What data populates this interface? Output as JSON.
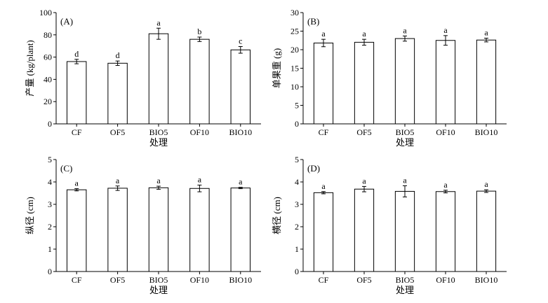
{
  "chart_data": [
    {
      "id": "A",
      "type": "bar",
      "panel_label": "(A)",
      "categories": [
        "CF",
        "OF5",
        "BIO5",
        "OF10",
        "BIO10"
      ],
      "values": [
        56,
        54.5,
        81,
        76,
        66.5
      ],
      "errors": [
        2,
        2,
        5,
        2,
        3
      ],
      "letters": [
        "d",
        "d",
        "a",
        "b",
        "c"
      ],
      "xlabel": "处理",
      "ylabel": "产量 (kg/plant)",
      "ylim": [
        0,
        100
      ],
      "yticks": [
        "0",
        "20",
        "40",
        "60",
        "80",
        "100"
      ]
    },
    {
      "id": "B",
      "type": "bar",
      "panel_label": "(B)",
      "categories": [
        "CF",
        "OF5",
        "BIO5",
        "OF10",
        "BIO10"
      ],
      "values": [
        21.8,
        22,
        23,
        22.5,
        22.6
      ],
      "errors": [
        1,
        0.8,
        0.7,
        1.3,
        0.5
      ],
      "letters": [
        "a",
        "a",
        "a",
        "a",
        "a"
      ],
      "xlabel": "处理",
      "ylabel": "单果重 (g)",
      "ylim": [
        0,
        30
      ],
      "yticks": [
        "0",
        "5",
        "10",
        "15",
        "20",
        "25",
        "30"
      ]
    },
    {
      "id": "C",
      "type": "bar",
      "panel_label": "(C)",
      "categories": [
        "CF",
        "OF5",
        "BIO5",
        "OF10",
        "BIO10"
      ],
      "values": [
        3.65,
        3.72,
        3.74,
        3.71,
        3.73
      ],
      "errors": [
        0.05,
        0.1,
        0.07,
        0.15,
        0.03
      ],
      "letters": [
        "a",
        "a",
        "a",
        "a",
        "a"
      ],
      "xlabel": "处理",
      "ylabel": "纵径 (cm)",
      "ylim": [
        0,
        5
      ],
      "yticks": [
        "0",
        "1",
        "2",
        "3",
        "4",
        "5"
      ]
    },
    {
      "id": "D",
      "type": "bar",
      "panel_label": "(D)",
      "categories": [
        "CF",
        "OF5",
        "BIO5",
        "OF10",
        "BIO10"
      ],
      "values": [
        3.52,
        3.68,
        3.58,
        3.57,
        3.59
      ],
      "errors": [
        0.05,
        0.12,
        0.25,
        0.06,
        0.06
      ],
      "letters": [
        "a",
        "a",
        "a",
        "a",
        "a"
      ],
      "xlabel": "处理",
      "ylabel": "横径 (cm)",
      "ylim": [
        0,
        5
      ],
      "yticks": [
        "0",
        "1",
        "2",
        "3",
        "4",
        "5"
      ]
    }
  ]
}
